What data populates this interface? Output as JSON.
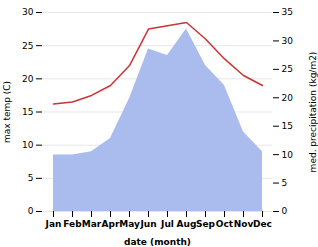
{
  "chart_data": {
    "type": "line",
    "categories": [
      "Jan",
      "Feb",
      "Mar",
      "Apr",
      "May",
      "Jun",
      "Jul",
      "Aug",
      "Sep",
      "Oct",
      "Nov",
      "Dec"
    ],
    "series": [
      {
        "type": "area",
        "color": "#aabbee",
        "values": [
          8.5,
          8.5,
          9.0,
          11.0,
          17.0,
          24.5,
          23.5,
          27.5,
          22.0,
          19.0,
          12.0,
          9.0
        ]
      },
      {
        "type": "line",
        "color": "#cc3333",
        "values": [
          16.2,
          16.5,
          17.5,
          19.0,
          22.0,
          27.5,
          28.0,
          28.5,
          26.0,
          23.0,
          20.5,
          19.0
        ]
      }
    ],
    "xlabel": "date (month)",
    "ylabel": "max temp (C)",
    "y2label": "med. precipitation (kg/m2)",
    "ylim": [
      0,
      30
    ],
    "yticks": [
      0,
      5,
      10,
      15,
      20,
      25,
      30
    ],
    "y2lim": [
      0,
      35
    ],
    "y2ticks": [
      0,
      5,
      10,
      15,
      20,
      25,
      30,
      35
    ],
    "grid": true
  }
}
